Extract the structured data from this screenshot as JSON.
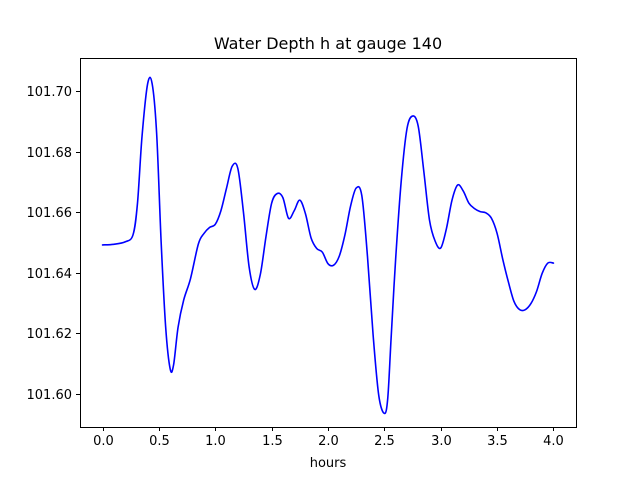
{
  "chart_data": {
    "type": "line",
    "title": "Water Depth h at gauge 140",
    "xlabel": "hours",
    "ylabel": "",
    "xlim": [
      -0.2,
      4.2
    ],
    "ylim": [
      101.589,
      101.711
    ],
    "xticks": [
      0.0,
      0.5,
      1.0,
      1.5,
      2.0,
      2.5,
      3.0,
      3.5,
      4.0
    ],
    "xtick_labels": [
      "0.0",
      "0.5",
      "1.0",
      "1.5",
      "2.0",
      "2.5",
      "3.0",
      "3.5",
      "4.0"
    ],
    "yticks": [
      101.6,
      101.62,
      101.64,
      101.66,
      101.68,
      101.7
    ],
    "ytick_labels": [
      "101.60",
      "101.62",
      "101.64",
      "101.66",
      "101.68",
      "101.70"
    ],
    "grid": false,
    "series": [
      {
        "color": "#0000ff",
        "x": [
          0.0,
          0.1,
          0.2,
          0.27,
          0.31,
          0.35,
          0.4,
          0.44,
          0.48,
          0.52,
          0.56,
          0.6,
          0.63,
          0.67,
          0.72,
          0.78,
          0.85,
          0.9,
          0.95,
          1.0,
          1.05,
          1.1,
          1.15,
          1.2,
          1.25,
          1.3,
          1.35,
          1.4,
          1.45,
          1.5,
          1.55,
          1.6,
          1.65,
          1.7,
          1.75,
          1.8,
          1.85,
          1.9,
          1.95,
          2.0,
          2.05,
          2.1,
          2.15,
          2.2,
          2.25,
          2.3,
          2.35,
          2.4,
          2.45,
          2.5,
          2.53,
          2.56,
          2.6,
          2.65,
          2.7,
          2.75,
          2.8,
          2.85,
          2.9,
          2.95,
          3.0,
          3.05,
          3.1,
          3.15,
          3.2,
          3.25,
          3.3,
          3.35,
          3.4,
          3.45,
          3.5,
          3.55,
          3.6,
          3.65,
          3.7,
          3.75,
          3.8,
          3.85,
          3.9,
          3.95,
          4.0
        ],
        "y": [
          101.6492,
          101.6494,
          101.6502,
          101.6525,
          101.663,
          101.685,
          101.7025,
          101.7025,
          101.686,
          101.65,
          101.622,
          101.6082,
          101.6095,
          101.622,
          101.631,
          101.638,
          101.6495,
          101.653,
          101.655,
          101.656,
          101.6605,
          101.668,
          101.6752,
          101.6745,
          101.66,
          101.642,
          101.6345,
          101.6395,
          101.652,
          101.663,
          101.6662,
          101.6648,
          101.658,
          101.6605,
          101.664,
          101.6595,
          101.6515,
          101.648,
          101.6468,
          101.643,
          101.6425,
          101.6455,
          101.6525,
          101.662,
          101.668,
          101.6655,
          101.6455,
          101.6195,
          101.5995,
          101.5935,
          101.5985,
          101.6185,
          101.6445,
          101.6705,
          101.6875,
          101.6918,
          101.6885,
          101.6735,
          101.6575,
          101.6505,
          101.6482,
          101.6545,
          101.664,
          101.669,
          101.667,
          101.663,
          101.6612,
          101.6602,
          101.6598,
          101.658,
          101.653,
          101.6445,
          101.637,
          101.6305,
          101.6278,
          101.6278,
          101.6298,
          101.6338,
          101.6398,
          101.6432,
          101.6432
        ]
      }
    ]
  }
}
